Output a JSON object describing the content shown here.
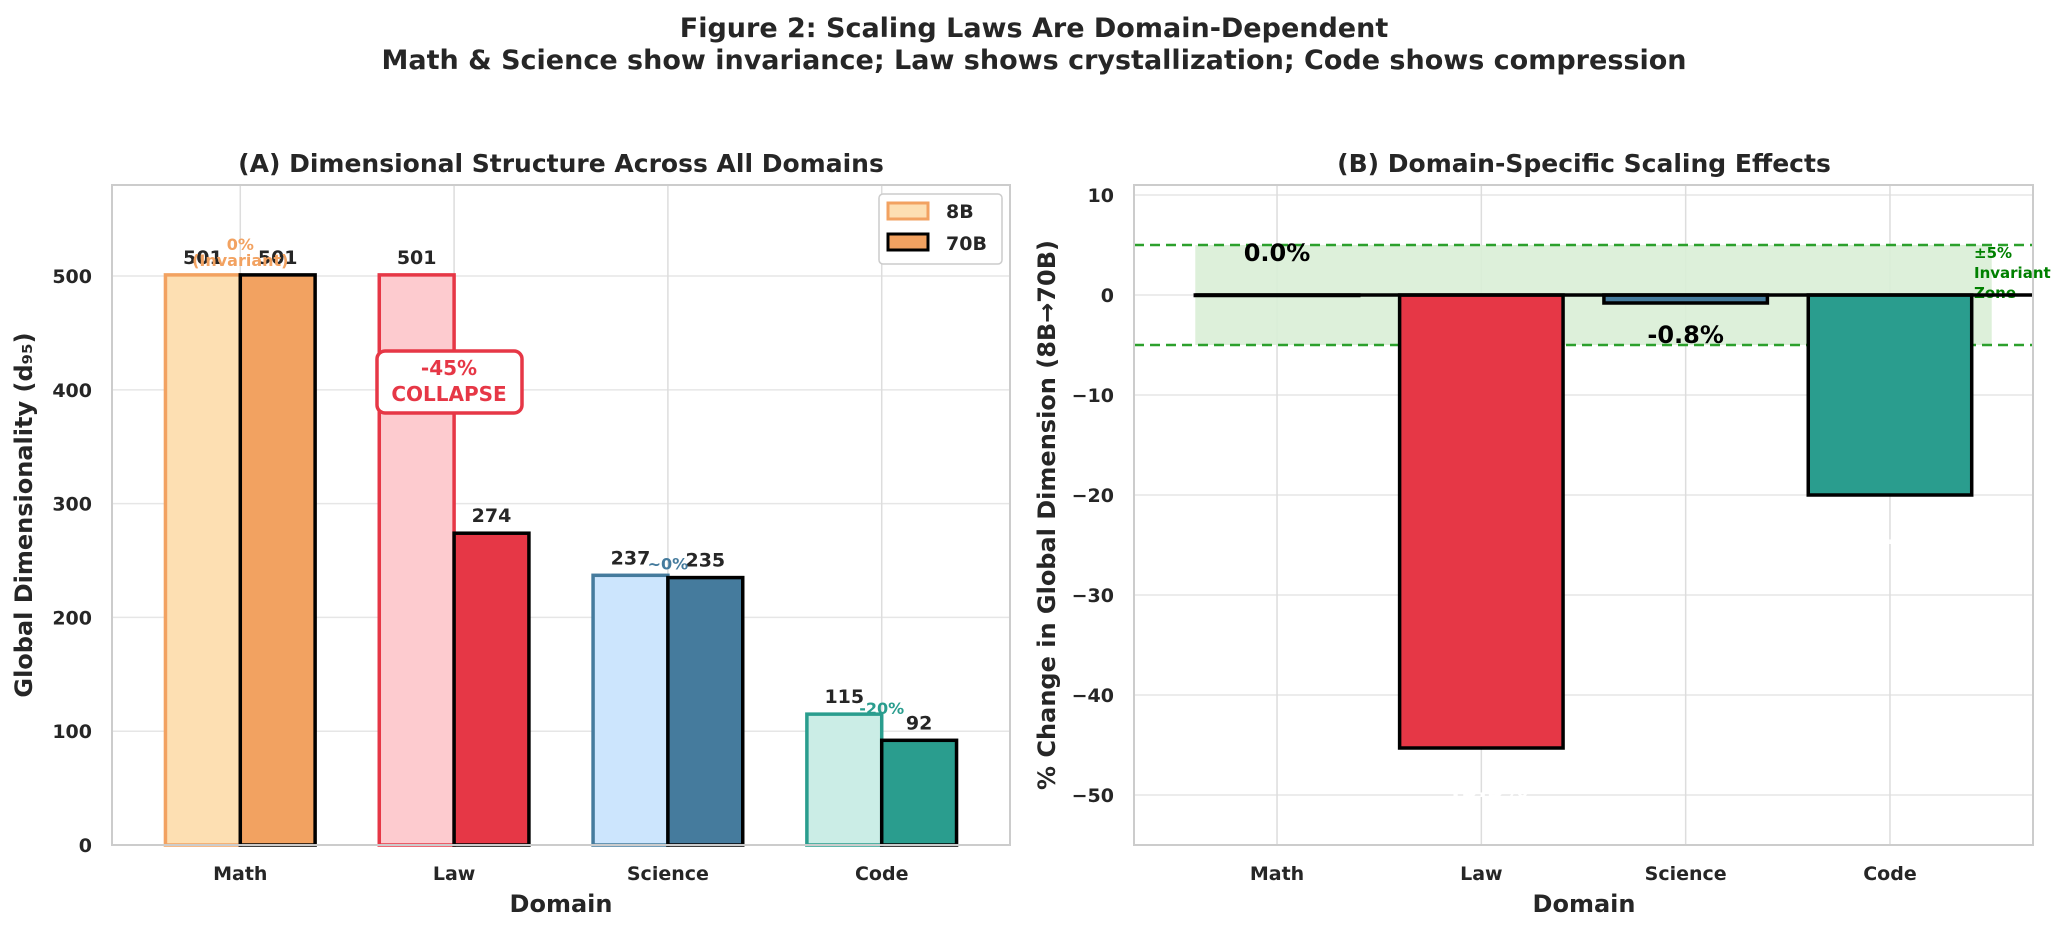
{
  "figure": {
    "title": "Figure 2: Scaling Laws Are Domain-Dependent",
    "subtitle": "Math & Science show invariance; Law shows crystallization; Code shows compression"
  },
  "chart_data": [
    {
      "type": "bar",
      "title": "(A) Dimensional Structure Across All Domains",
      "xlabel": "Domain",
      "ylabel": "Global Dimensionality (d₉₅)",
      "categories": [
        "Math",
        "Law",
        "Science",
        "Code"
      ],
      "ylim": [
        0,
        580
      ],
      "yticks": [
        0,
        100,
        200,
        300,
        400,
        500
      ],
      "grid": true,
      "legend_position": "top-right",
      "series": [
        {
          "name": "8B",
          "values": [
            501,
            501,
            237,
            115
          ],
          "value_labels": [
            "501",
            "501",
            "237",
            "115"
          ]
        },
        {
          "name": "70B",
          "values": [
            501,
            274,
            235,
            92
          ],
          "value_labels": [
            "501",
            "274",
            "235",
            "92"
          ]
        }
      ],
      "colors": {
        "light": [
          "#fddfb2",
          "#fdcbcf",
          "#cce5fd",
          "#cbede6"
        ],
        "dark": [
          "#f2a261",
          "#e63746",
          "#457b9d",
          "#2a9d8e"
        ],
        "edge_8b": [
          "#f2a261",
          "#e63746",
          "#457b9d",
          "#2a9d8e"
        ],
        "edge_70b": "#000000",
        "legend_8b_fill": "#fddfb2",
        "legend_8b_edge": "#f2a261",
        "legend_70b_fill": "#f2a261"
      },
      "annotations": [
        {
          "category": "Math",
          "y": 516,
          "lines": [
            "0%",
            "(Invariant)"
          ],
          "color": "#f2a261"
        },
        {
          "category": "Science",
          "y": 242,
          "lines": [
            "~0%"
          ],
          "color": "#457b9d"
        },
        {
          "category": "Code",
          "y": 115,
          "lines": [
            "-20%"
          ],
          "color": "#2a9d8e"
        }
      ],
      "callout": {
        "category": "Law",
        "y": 400,
        "lines": [
          "-45%",
          "COLLAPSE"
        ],
        "color": "#e63746"
      }
    },
    {
      "type": "bar",
      "title": "(B) Domain-Specific Scaling Effects",
      "xlabel": "Domain",
      "ylabel": "% Change in Global Dimension (8B→70B)",
      "categories": [
        "Math",
        "Law",
        "Science",
        "Code"
      ],
      "values": [
        0.0,
        -45.3,
        -0.8,
        -20.0
      ],
      "ylim": [
        -55,
        11
      ],
      "yticks": [
        10,
        0,
        -10,
        -20,
        -30,
        -40,
        -50
      ],
      "grid": true,
      "bar_colors": [
        "#f2a261",
        "#e63746",
        "#457b9d",
        "#2a9d8e"
      ],
      "value_labels": [
        {
          "category": "Math",
          "text": "0.0%",
          "y": 3.4,
          "color": "#000000"
        },
        {
          "category": "Law",
          "text": "-45.3%",
          "y": -50.2,
          "color": "#ffffff"
        },
        {
          "category": "Science",
          "text": "-0.8%",
          "y": -4.8,
          "color": "#000000"
        },
        {
          "category": "Code",
          "text": "-20.0%",
          "y": -24.9,
          "color": "#ffffff"
        }
      ],
      "invariant_zone": {
        "low": -5,
        "high": 5,
        "lines": [
          "±5%",
          "Invariant",
          "Zone"
        ],
        "color": "#008000",
        "line_color": "#2ca02c",
        "fill": "#d9eed6"
      }
    }
  ]
}
